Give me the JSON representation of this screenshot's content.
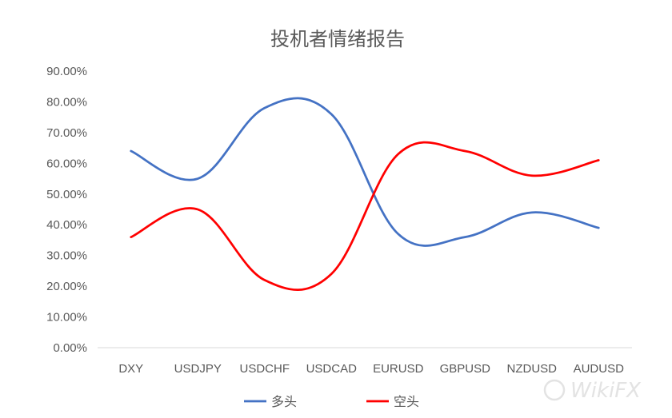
{
  "chart_data": {
    "type": "line",
    "title": "投机者情绪报告",
    "categories": [
      "DXY",
      "USDJPY",
      "USDCHF",
      "USDCAD",
      "EURUSD",
      "GBPUSD",
      "NZDUSD",
      "AUDUSD"
    ],
    "series": [
      {
        "name": "多头",
        "color": "#4472C4",
        "values": [
          0.64,
          0.55,
          0.78,
          0.76,
          0.37,
          0.36,
          0.44,
          0.39
        ]
      },
      {
        "name": "空头",
        "color": "#FF0000",
        "values": [
          0.36,
          0.45,
          0.22,
          0.24,
          0.63,
          0.64,
          0.56,
          0.61
        ]
      }
    ],
    "ylim": [
      0,
      0.9
    ],
    "yticks": [
      "0.00%",
      "10.00%",
      "20.00%",
      "30.00%",
      "40.00%",
      "50.00%",
      "60.00%",
      "70.00%",
      "80.00%",
      "90.00%"
    ],
    "xlabel": "",
    "ylabel": "",
    "grid": false,
    "legend": "bottom"
  },
  "watermark": "WikiFX"
}
